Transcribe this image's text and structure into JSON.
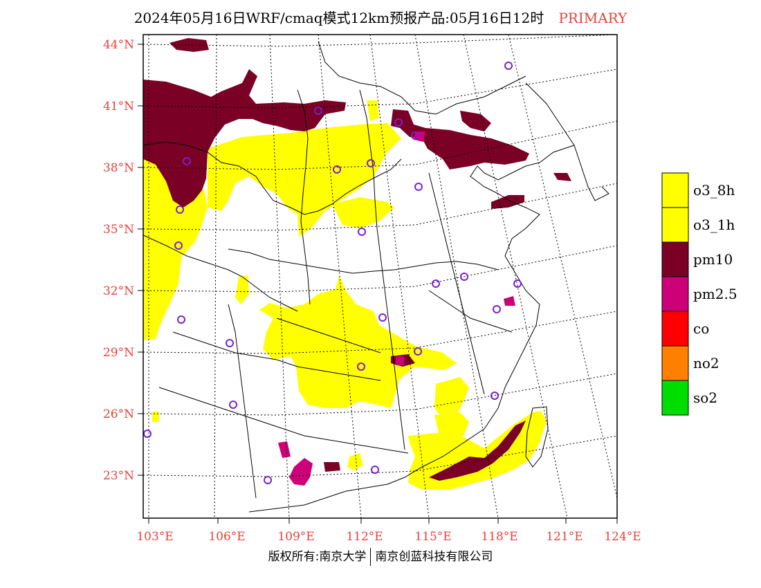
{
  "title": {
    "text": "2024年05月16日WRF/cmaq模式12km预报产品:05月16日12时",
    "tag": "PRIMARY"
  },
  "axes": {
    "lat_labels": [
      "44°N",
      "41°N",
      "38°N",
      "35°N",
      "32°N",
      "29°N",
      "26°N",
      "23°N"
    ],
    "lon_labels": [
      "103°E",
      "106°E",
      "109°E",
      "112°E",
      "115°E",
      "118°E",
      "121°E",
      "124°E"
    ]
  },
  "legend": {
    "items": [
      {
        "label": "o3_8h",
        "color": "#ffff00"
      },
      {
        "label": "o3_1h",
        "color": "#ffff00"
      },
      {
        "label": "pm10",
        "color": "#7a0026"
      },
      {
        "label": "pm2.5",
        "color": "#cc0077"
      },
      {
        "label": "co",
        "color": "#ff0000"
      },
      {
        "label": "no2",
        "color": "#ff7f00"
      },
      {
        "label": "so2",
        "color": "#00dd00"
      }
    ]
  },
  "colors": {
    "o3": "#ffff00",
    "pm10": "#7a0026",
    "pm25": "#cc0077",
    "station": "#7a1fd1",
    "label": "#e8403a"
  },
  "footer": {
    "left": "版权所有:南京大学",
    "right": "南京创蓝科技有限公司"
  }
}
